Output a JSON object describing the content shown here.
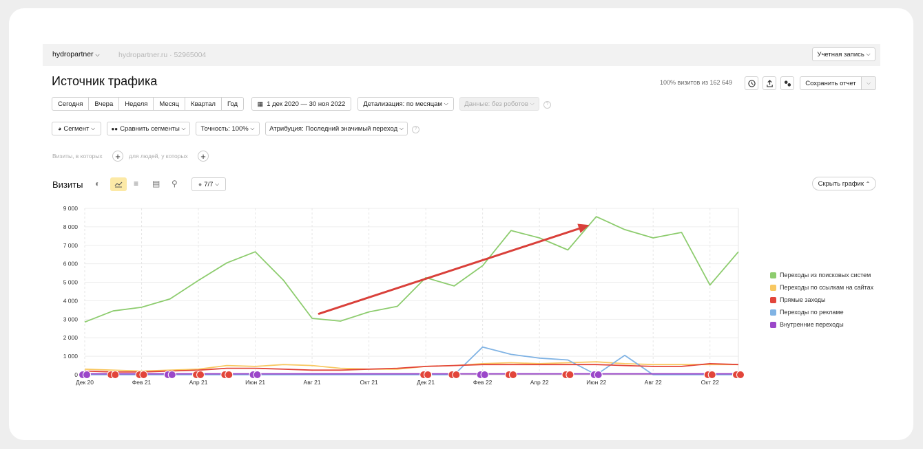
{
  "topbar": {
    "counter_name": "hydropartner",
    "site": "hydropartner.ru · 52965004",
    "account_button": "Учетная запись"
  },
  "header": {
    "title": "Источник трафика",
    "visits_share": "100% визитов из 162 649",
    "save_report": "Сохранить отчет"
  },
  "periods": [
    "Сегодня",
    "Вчера",
    "Неделя",
    "Месяц",
    "Квартал",
    "Год"
  ],
  "date_range": "1 дек 2020 — 30 ноя 2022",
  "detail": "Детализация: по месяцам",
  "data_filter": "Данные: без роботов",
  "filters": {
    "segment": "Сегмент",
    "compare": "Сравнить сегменты",
    "accuracy": "Точность: 100%",
    "attribution": "Атрибуция: Последний значимый переход"
  },
  "conditions": {
    "visits_where": "Визиты, в которых",
    "people_where": "для людей, у которых"
  },
  "chart_header": {
    "metric": "Визиты",
    "series_count": "7/7",
    "hide_chart": "Скрыть график"
  },
  "colors": {
    "search": "#8dcc6e",
    "links": "#f8c861",
    "direct": "#e2453a",
    "ads": "#80b3e4",
    "internal": "#9b47c9",
    "arrow": "#d9403a"
  },
  "chart_data": {
    "type": "line",
    "x": [
      "Дек 20",
      "Янв 21",
      "Фев 21",
      "Мар 21",
      "Апр 21",
      "Май 21",
      "Июн 21",
      "Июл 21",
      "Авг 21",
      "Сен 21",
      "Окт 21",
      "Ноя 21",
      "Дек 21",
      "Янв 22",
      "Фев 22",
      "Мар 22",
      "Апр 22",
      "Май 22",
      "Июн 22",
      "Июл 22",
      "Авг 22",
      "Сен 22",
      "Окт 22",
      "Ноя 22"
    ],
    "x_tick_labels": [
      "Дек 20",
      "Фев 21",
      "Апр 21",
      "Июн 21",
      "Авг 21",
      "Окт 21",
      "Дек 21",
      "Фев 22",
      "Апр 22",
      "Июн 22",
      "Авг 22",
      "Окт 22"
    ],
    "y_tick_labels": [
      "0",
      "1 000",
      "2 000",
      "3 000",
      "4 000",
      "5 000",
      "6 000",
      "7 000",
      "8 000",
      "9 000"
    ],
    "ylim": [
      0,
      9000
    ],
    "grid": true,
    "legend_position": "right",
    "series": [
      {
        "name": "Переходы из поисковых систем",
        "color_key": "search",
        "values": [
          2850,
          3450,
          3650,
          4100,
          5100,
          6050,
          6650,
          5100,
          3050,
          2900,
          3400,
          3700,
          5250,
          4800,
          5900,
          7800,
          7400,
          6750,
          8550,
          7850,
          7400,
          7700,
          4850,
          6650
        ]
      },
      {
        "name": "Переходы по ссылкам на сайтах",
        "color_key": "links",
        "values": [
          300,
          250,
          200,
          250,
          300,
          500,
          450,
          550,
          500,
          350,
          300,
          300,
          450,
          500,
          600,
          650,
          600,
          650,
          700,
          600,
          550,
          550,
          550,
          550
        ]
      },
      {
        "name": "Прямые заходы",
        "color_key": "direct",
        "values": [
          200,
          150,
          150,
          200,
          250,
          350,
          350,
          300,
          250,
          250,
          300,
          350,
          450,
          500,
          550,
          550,
          550,
          550,
          550,
          500,
          450,
          450,
          600,
          550
        ]
      },
      {
        "name": "Переходы по рекламе",
        "color_key": "ads",
        "values": [
          0,
          0,
          0,
          0,
          0,
          0,
          0,
          0,
          0,
          0,
          0,
          0,
          0,
          0,
          1500,
          1100,
          900,
          800,
          0,
          1050,
          0,
          0,
          0,
          0
        ]
      },
      {
        "name": "Внутренние переходы",
        "color_key": "internal",
        "values": [
          50,
          50,
          50,
          50,
          50,
          50,
          50,
          50,
          50,
          50,
          50,
          50,
          50,
          50,
          50,
          50,
          50,
          50,
          50,
          50,
          50,
          50,
          50,
          50
        ]
      }
    ],
    "annotation_arrow": {
      "from": {
        "x": "Авг 21",
        "y": 3300
      },
      "to": {
        "x": "Июн 22",
        "y": 8100
      }
    }
  }
}
